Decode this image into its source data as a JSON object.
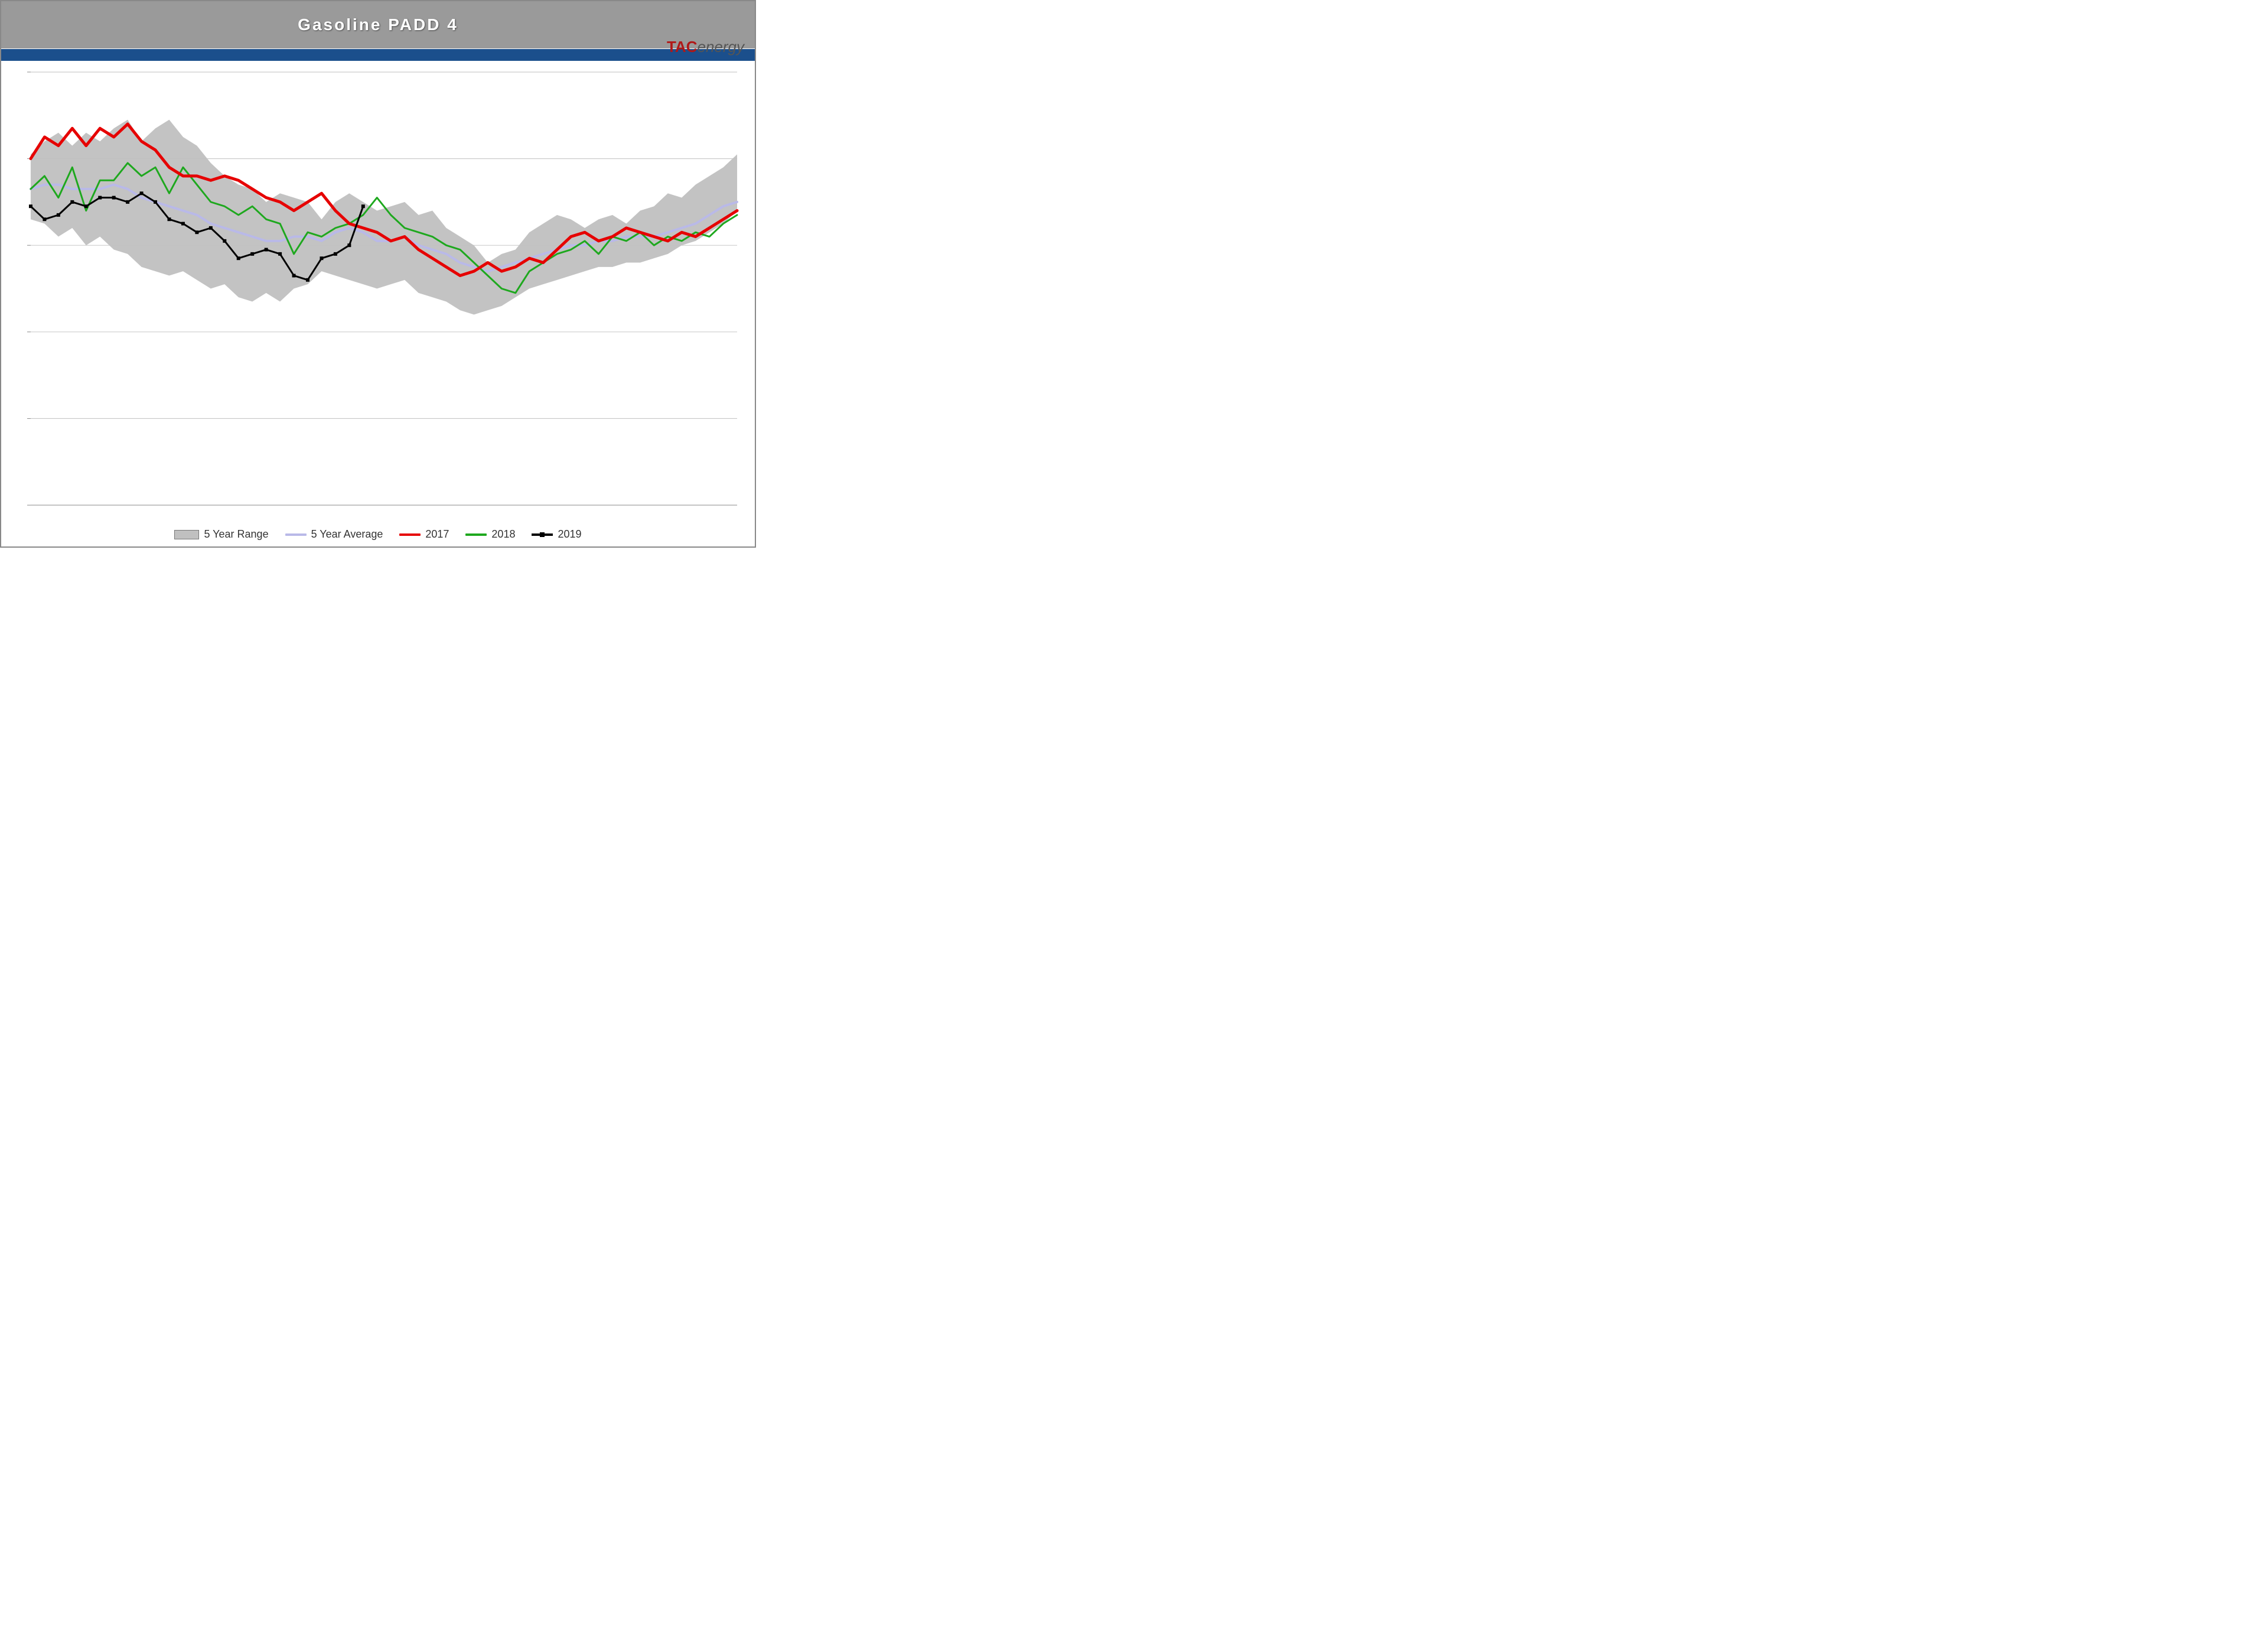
{
  "chart": {
    "type": "line",
    "title": "Gasoline PADD 4",
    "logo": {
      "left": "TAC",
      "right": "energy"
    },
    "background_color": "#ffffff",
    "title_bar_color": "#9a9a9a",
    "blue_strip_color": "#1b4f8c",
    "grid_color": "#bfbfbf",
    "axis_color": "#888888",
    "ylim": [
      0,
      10
    ],
    "yticks": [
      0,
      2,
      4,
      6,
      8,
      10
    ],
    "x_count": 52,
    "legend": {
      "items": [
        {
          "key": "range",
          "label": "5 Year Range",
          "type": "range",
          "color": "#c0c0c0"
        },
        {
          "key": "avg",
          "label": "5 Year Average",
          "type": "line",
          "color": "#b9b9e8"
        },
        {
          "key": "y2017",
          "label": "2017",
          "type": "line",
          "color": "#e60000"
        },
        {
          "key": "y2018",
          "label": "2018",
          "type": "line",
          "color": "#1ea81e"
        },
        {
          "key": "y2019",
          "label": "2019",
          "type": "marker",
          "color": "#000000"
        }
      ]
    },
    "series": {
      "range_upper": [
        8.1,
        8.4,
        8.6,
        8.3,
        8.6,
        8.4,
        8.7,
        8.9,
        8.4,
        8.7,
        8.9,
        8.5,
        8.3,
        7.9,
        7.6,
        7.4,
        7.3,
        7.0,
        7.2,
        7.1,
        7.0,
        6.6,
        7.0,
        7.2,
        7.0,
        6.8,
        6.9,
        7.0,
        6.7,
        6.8,
        6.4,
        6.2,
        6.0,
        5.6,
        5.8,
        5.9,
        6.3,
        6.5,
        6.7,
        6.6,
        6.4,
        6.6,
        6.7,
        6.5,
        6.8,
        6.9,
        7.2,
        7.1,
        7.4,
        7.6,
        7.8,
        8.1
      ],
      "range_lower": [
        6.6,
        6.5,
        6.2,
        6.4,
        6.0,
        6.2,
        5.9,
        5.8,
        5.5,
        5.4,
        5.3,
        5.4,
        5.2,
        5.0,
        5.1,
        4.8,
        4.7,
        4.9,
        4.7,
        5.0,
        5.1,
        5.4,
        5.3,
        5.2,
        5.1,
        5.0,
        5.1,
        5.2,
        4.9,
        4.8,
        4.7,
        4.5,
        4.4,
        4.5,
        4.6,
        4.8,
        5.0,
        5.1,
        5.2,
        5.3,
        5.4,
        5.5,
        5.5,
        5.6,
        5.6,
        5.7,
        5.8,
        6.0,
        6.1,
        6.3,
        6.5,
        6.8
      ],
      "avg": [
        7.3,
        7.4,
        7.4,
        7.3,
        7.3,
        7.3,
        7.4,
        7.3,
        7.1,
        7.0,
        6.9,
        6.8,
        6.7,
        6.5,
        6.4,
        6.3,
        6.2,
        6.1,
        6.1,
        6.2,
        6.2,
        6.1,
        6.3,
        6.4,
        6.3,
        6.1,
        6.1,
        6.2,
        6.0,
        5.9,
        5.8,
        5.6,
        5.5,
        5.4,
        5.5,
        5.6,
        5.7,
        5.8,
        5.9,
        6.0,
        6.0,
        6.1,
        6.1,
        6.2,
        6.2,
        6.2,
        6.3,
        6.4,
        6.5,
        6.7,
        6.9,
        7.0
      ],
      "y2017": [
        8.0,
        8.5,
        8.3,
        8.7,
        8.3,
        8.7,
        8.5,
        8.8,
        8.4,
        8.2,
        7.8,
        7.6,
        7.6,
        7.5,
        7.6,
        7.5,
        7.3,
        7.1,
        7.0,
        6.8,
        7.0,
        7.2,
        6.8,
        6.5,
        6.4,
        6.3,
        6.1,
        6.2,
        5.9,
        5.7,
        5.5,
        5.3,
        5.4,
        5.6,
        5.4,
        5.5,
        5.7,
        5.6,
        5.9,
        6.2,
        6.3,
        6.1,
        6.2,
        6.4,
        6.3,
        6.2,
        6.1,
        6.3,
        6.2,
        6.4,
        6.6,
        6.8
      ],
      "y2018": [
        7.3,
        7.6,
        7.1,
        7.8,
        6.8,
        7.5,
        7.5,
        7.9,
        7.6,
        7.8,
        7.2,
        7.8,
        7.4,
        7.0,
        6.9,
        6.7,
        6.9,
        6.6,
        6.5,
        5.8,
        6.3,
        6.2,
        6.4,
        6.5,
        6.7,
        7.1,
        6.7,
        6.4,
        6.3,
        6.2,
        6.0,
        5.9,
        5.6,
        5.3,
        5.0,
        4.9,
        5.4,
        5.6,
        5.8,
        5.9,
        6.1,
        5.8,
        6.2,
        6.1,
        6.3,
        6.0,
        6.2,
        6.1,
        6.3,
        6.2,
        6.5,
        6.7
      ],
      "y2019": [
        6.9,
        6.6,
        6.7,
        7.0,
        6.9,
        7.1,
        7.1,
        7.0,
        7.2,
        7.0,
        6.6,
        6.5,
        6.3,
        6.4,
        6.1,
        5.7,
        5.8,
        5.9,
        5.8,
        5.3,
        5.2,
        5.7,
        5.8,
        6.0,
        6.9
      ]
    },
    "styles": {
      "range_fill": "#c0c0c0",
      "range_opacity": 0.95,
      "avg": {
        "color": "#b9b9e8",
        "width": 4
      },
      "y2017": {
        "color": "#e60000",
        "width": 5
      },
      "y2018": {
        "color": "#1ea81e",
        "width": 3
      },
      "y2019": {
        "color": "#000000",
        "width": 3,
        "marker_size": 6
      }
    }
  }
}
